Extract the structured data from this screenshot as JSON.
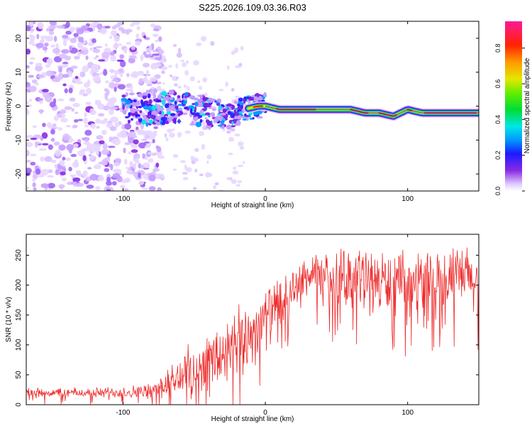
{
  "title": "S225.2026.109.03.36.R03",
  "chart_data": [
    {
      "type": "heatmap",
      "xlabel": "Height of straight line (km)",
      "ylabel": "Frequency (Hz)",
      "xlim": [
        -168,
        150
      ],
      "ylim": [
        -25,
        25
      ],
      "xticks": [
        -100,
        0,
        100
      ],
      "xtick_labels": [
        "-100",
        "0",
        "100"
      ],
      "yticks": [
        -20,
        -10,
        0,
        10,
        20
      ],
      "ytick_labels": [
        "-20",
        "-10",
        "0",
        "10",
        "20"
      ],
      "ridge": {
        "x": [
          -100,
          -80,
          -60,
          -40,
          -25,
          -15,
          -5,
          0,
          10,
          20,
          40,
          60,
          70,
          80,
          90,
          100,
          110,
          120,
          130,
          150
        ],
        "freq_hz": [
          0,
          -1,
          0,
          -2,
          -3,
          -1,
          0,
          0,
          -1,
          -1,
          -1,
          -1,
          -2,
          -2,
          -3,
          -1,
          -2,
          -2,
          -2,
          -2
        ]
      }
    },
    {
      "type": "line",
      "xlabel": "Height of straight line (km)",
      "ylabel": "SNR (10 * v/v)",
      "xlim": [
        -168,
        150
      ],
      "ylim": [
        0,
        285
      ],
      "xticks": [
        -100,
        0,
        100
      ],
      "xtick_labels": [
        "-100",
        "0",
        "100"
      ],
      "yticks": [
        0,
        50,
        100,
        150,
        200,
        250
      ],
      "ytick_labels": [
        "0",
        "50",
        "100",
        "150",
        "200",
        "250"
      ],
      "color": "#ee2a2a",
      "envelope": {
        "x": [
          -168,
          -120,
          -80,
          -65,
          -50,
          -35,
          -20,
          -10,
          0,
          10,
          20,
          30,
          40,
          60,
          80,
          100,
          120,
          140,
          150
        ],
        "mean": [
          20,
          20,
          22,
          40,
          60,
          75,
          95,
          120,
          145,
          165,
          195,
          215,
          210,
          215,
          205,
          200,
          210,
          215,
          200
        ],
        "spread": [
          10,
          10,
          15,
          40,
          55,
          70,
          75,
          70,
          60,
          55,
          40,
          40,
          50,
          60,
          65,
          60,
          60,
          60,
          70
        ]
      }
    }
  ],
  "colorbar": {
    "label": "Normalized spectral amplitude",
    "ticks": [
      0,
      0.2,
      0.4,
      0.6,
      0.8
    ],
    "tick_labels": [
      "0.0",
      "0.2",
      "0.4",
      "0.6",
      "0.8"
    ],
    "range": [
      0,
      0.95
    ]
  }
}
